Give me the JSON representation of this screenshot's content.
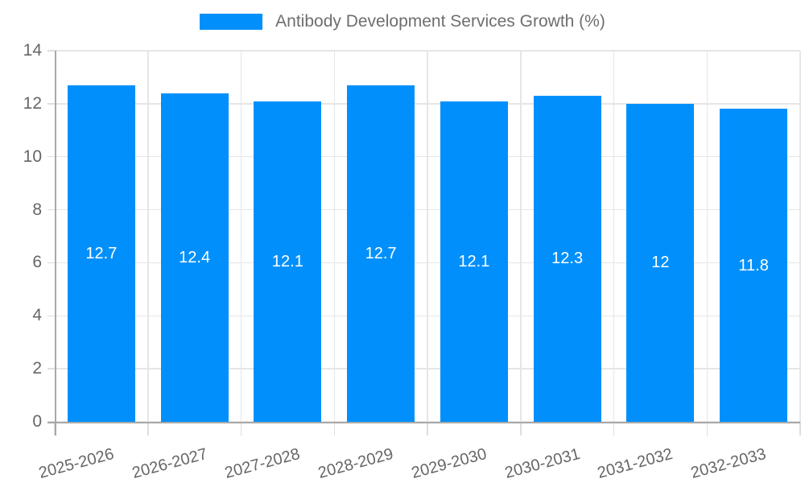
{
  "legend": {
    "label": "Antibody Development Services Growth (%)"
  },
  "chart_data": {
    "type": "bar",
    "title": "",
    "xlabel": "",
    "ylabel": "",
    "series_name": "Antibody Development Services Growth (%)",
    "categories": [
      "2025-2026",
      "2026-2027",
      "2027-2028",
      "2028-2029",
      "2029-2030",
      "2030-2031",
      "2031-2032",
      "2032-2033"
    ],
    "values": [
      12.7,
      12.4,
      12.1,
      12.7,
      12.1,
      12.3,
      12,
      11.8
    ],
    "ylim": [
      0,
      14
    ],
    "yticks": [
      0,
      2,
      4,
      6,
      8,
      10,
      12,
      14
    ],
    "grid": true,
    "legend_position": "top-center",
    "value_labels": "inside-center",
    "x_tick_rotation_deg": -15,
    "colors": {
      "bar": "#0190fb",
      "value_label": "#ffffff",
      "grid": "#e6e6e6",
      "axis": "#a8a8a8",
      "tick": "#dedede",
      "tick_label": "#666666",
      "legend_text": "#6e6e6e"
    }
  }
}
